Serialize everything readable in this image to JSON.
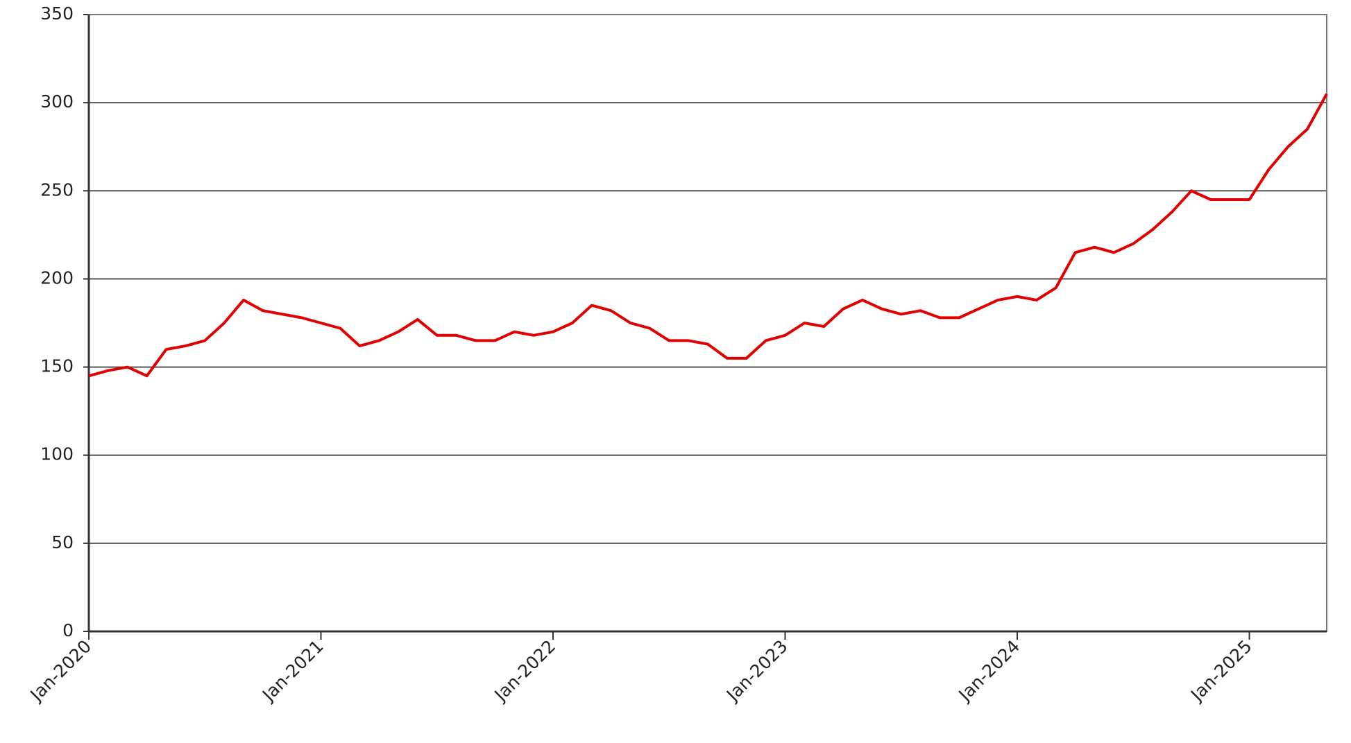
{
  "chart_data": {
    "type": "line",
    "x": [
      "2020-01",
      "2020-02",
      "2020-03",
      "2020-04",
      "2020-05",
      "2020-06",
      "2020-07",
      "2020-08",
      "2020-09",
      "2020-10",
      "2020-11",
      "2020-12",
      "2021-01",
      "2021-02",
      "2021-03",
      "2021-04",
      "2021-05",
      "2021-06",
      "2021-07",
      "2021-08",
      "2021-09",
      "2021-10",
      "2021-11",
      "2021-12",
      "2022-01",
      "2022-02",
      "2022-03",
      "2022-04",
      "2022-05",
      "2022-06",
      "2022-07",
      "2022-08",
      "2022-09",
      "2022-10",
      "2022-11",
      "2022-12",
      "2023-01",
      "2023-02",
      "2023-03",
      "2023-04",
      "2023-05",
      "2023-06",
      "2023-07",
      "2023-08",
      "2023-09",
      "2023-10",
      "2023-11",
      "2023-12",
      "2024-01",
      "2024-02",
      "2024-03",
      "2024-04",
      "2024-05",
      "2024-06",
      "2024-07",
      "2024-08",
      "2024-09",
      "2024-10",
      "2024-11",
      "2024-12",
      "2025-01",
      "2025-02",
      "2025-03",
      "2025-04",
      "2025-05"
    ],
    "values": [
      145,
      148,
      150,
      145,
      160,
      162,
      165,
      175,
      188,
      182,
      180,
      178,
      175,
      172,
      162,
      165,
      170,
      177,
      168,
      168,
      165,
      165,
      170,
      168,
      170,
      175,
      185,
      182,
      175,
      172,
      165,
      165,
      163,
      155,
      155,
      165,
      168,
      175,
      173,
      183,
      188,
      183,
      180,
      182,
      178,
      178,
      183,
      188,
      190,
      188,
      195,
      215,
      218,
      215,
      220,
      228,
      238,
      250,
      245,
      245,
      245,
      262,
      275,
      285,
      305
    ],
    "color": "#e00000",
    "xlim": [
      "2020-01",
      "2025-05"
    ],
    "xticks": [
      {
        "value": "2020-01",
        "label": "Jan-2020"
      },
      {
        "value": "2021-01",
        "label": "Jan-2021"
      },
      {
        "value": "2022-01",
        "label": "Jan-2022"
      },
      {
        "value": "2023-01",
        "label": "Jan-2023"
      },
      {
        "value": "2024-01",
        "label": "Jan-2024"
      },
      {
        "value": "2025-01",
        "label": "Jan-2025"
      }
    ],
    "ylim": [
      0,
      350
    ],
    "yticks": [
      0,
      50,
      100,
      150,
      200,
      250,
      300,
      350
    ],
    "grid": true
  }
}
